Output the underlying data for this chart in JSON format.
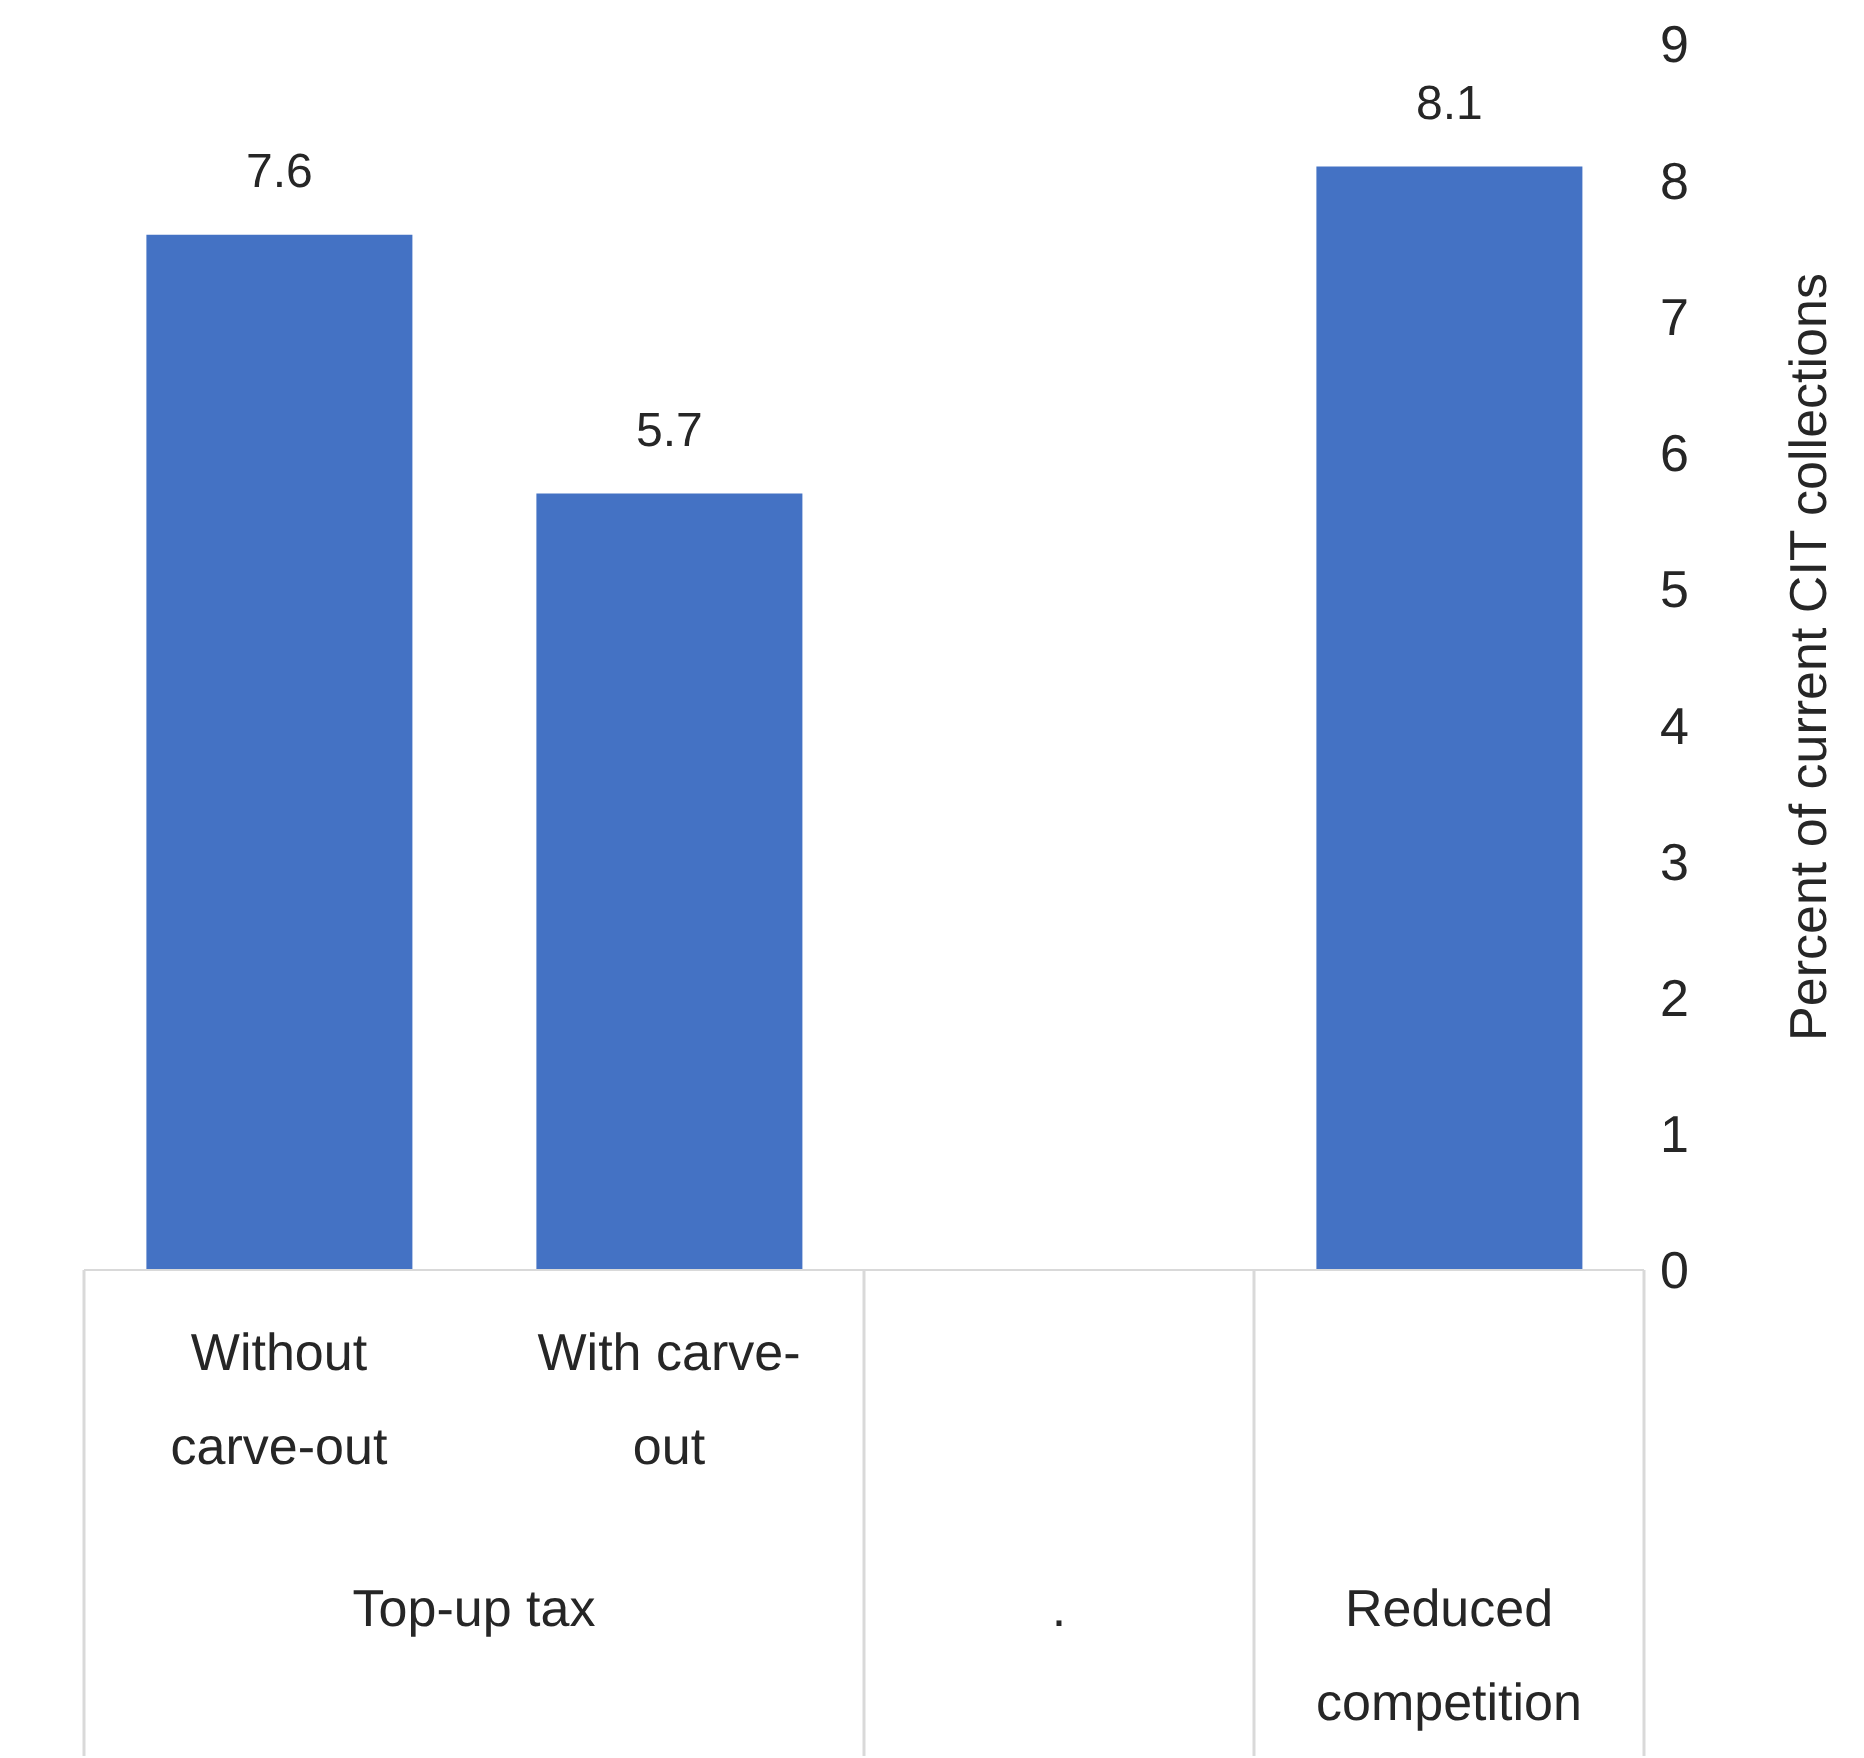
{
  "chart_data": {
    "type": "bar",
    "categories": [
      "Without carve-out",
      "With carve-out",
      null,
      null
    ],
    "values": [
      7.6,
      5.7,
      null,
      8.1
    ],
    "color": "#4472c4",
    "ylabel": "Percent of current CIT collections",
    "ylim": [
      0,
      9
    ],
    "yticks": [
      0,
      1,
      2,
      3,
      4,
      5,
      6,
      7,
      8,
      9
    ],
    "data_labels": true,
    "annotations": [
      "Top-up tax",
      ".",
      "Reduced competition"
    ]
  }
}
